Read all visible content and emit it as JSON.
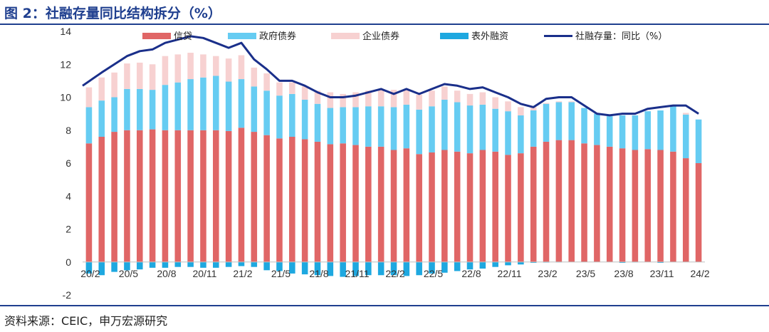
{
  "header": {
    "title": "图 2：社融存量同比结构拆分（%）"
  },
  "footer": {
    "source": "资料来源：CEIC，申万宏源研究"
  },
  "chart_data": {
    "type": "bar",
    "title": "图 2：社融存量同比结构拆分（%）",
    "xlabel": "",
    "ylabel": "",
    "ylim": [
      -2,
      14
    ],
    "yticks": [
      -2,
      0,
      2,
      4,
      6,
      8,
      10,
      12,
      14
    ],
    "stacked": true,
    "grid": false,
    "legend_position": "top",
    "categories": [
      "20/2",
      "20/3",
      "20/4",
      "20/5",
      "20/6",
      "20/7",
      "20/8",
      "20/9",
      "20/10",
      "20/11",
      "20/12",
      "21/1",
      "21/2",
      "21/3",
      "21/4",
      "21/5",
      "21/6",
      "21/7",
      "21/8",
      "21/9",
      "21/10",
      "21/11",
      "21/12",
      "22/1",
      "22/2",
      "22/3",
      "22/4",
      "22/5",
      "22/6",
      "22/7",
      "22/8",
      "22/9",
      "22/10",
      "22/11",
      "22/12",
      "23/1",
      "23/2",
      "23/3",
      "23/4",
      "23/5",
      "23/6",
      "23/7",
      "23/8",
      "23/9",
      "23/10",
      "23/11",
      "23/12",
      "24/1",
      "24/2"
    ],
    "tick_labels": [
      "20/2",
      "20/5",
      "20/8",
      "20/11",
      "21/2",
      "21/5",
      "21/8",
      "21/11",
      "22/2",
      "22/5",
      "22/8",
      "22/11",
      "23/2",
      "23/5",
      "23/8",
      "23/11",
      "24/2"
    ],
    "series": [
      {
        "name": "信贷",
        "kind": "bar",
        "color": "#e06666",
        "values": [
          7.2,
          7.6,
          7.9,
          8.0,
          8.0,
          8.05,
          8.0,
          8.0,
          8.0,
          8.0,
          8.0,
          7.95,
          8.15,
          7.9,
          7.7,
          7.5,
          7.6,
          7.45,
          7.3,
          7.15,
          7.2,
          7.1,
          7.0,
          7.0,
          6.8,
          6.9,
          6.55,
          6.65,
          6.8,
          6.7,
          6.6,
          6.8,
          6.7,
          6.5,
          6.6,
          7.0,
          7.3,
          7.4,
          7.4,
          7.2,
          7.1,
          7.0,
          6.9,
          6.8,
          6.85,
          6.8,
          6.7,
          6.3,
          6.0
        ]
      },
      {
        "name": "政府债券",
        "kind": "bar",
        "color": "#66ccf2",
        "values": [
          2.2,
          2.2,
          2.1,
          2.5,
          2.5,
          2.4,
          2.75,
          2.9,
          3.1,
          3.2,
          3.3,
          3.0,
          2.95,
          2.75,
          2.7,
          2.6,
          2.6,
          2.4,
          2.3,
          2.2,
          2.2,
          2.3,
          2.45,
          2.45,
          2.6,
          2.65,
          2.7,
          2.8,
          3.05,
          3.0,
          2.9,
          2.75,
          2.6,
          2.65,
          2.3,
          2.2,
          2.3,
          2.3,
          2.3,
          2.15,
          1.9,
          1.85,
          2.0,
          2.1,
          2.3,
          2.4,
          2.75,
          2.65,
          2.65
        ]
      },
      {
        "name": "企业债券",
        "kind": "bar",
        "color": "#f7d1d1",
        "values": [
          1.2,
          1.4,
          1.5,
          1.55,
          1.6,
          1.55,
          1.75,
          1.7,
          1.6,
          1.4,
          1.2,
          1.4,
          1.45,
          1.15,
          1.05,
          0.8,
          0.7,
          0.8,
          0.8,
          0.95,
          0.8,
          0.9,
          0.95,
          1.0,
          1.05,
          0.95,
          0.9,
          0.95,
          0.8,
          0.7,
          0.7,
          0.75,
          0.7,
          0.6,
          0.5,
          0.2,
          0.05,
          0.05,
          0.05,
          0.0,
          0.0,
          0.0,
          0.0,
          0.0,
          0.0,
          0.0,
          0.0,
          0.1,
          0.0
        ]
      },
      {
        "name": "表外融资",
        "kind": "bar",
        "color": "#1ea8e0",
        "values": [
          -0.7,
          -0.8,
          -0.6,
          -0.5,
          -0.45,
          -0.35,
          -0.35,
          -0.3,
          -0.3,
          -0.35,
          -0.35,
          -0.3,
          -0.25,
          -0.3,
          -0.5,
          -0.55,
          -0.7,
          -0.75,
          -0.8,
          -0.85,
          -0.9,
          -0.85,
          -0.8,
          -0.8,
          -0.8,
          -0.85,
          -0.8,
          -0.7,
          -0.65,
          -0.55,
          -0.45,
          -0.4,
          -0.3,
          -0.2,
          -0.15,
          -0.05,
          -0.03,
          -0.02,
          0.0,
          0.0,
          0.0,
          0.0,
          -0.05,
          -0.02,
          0.0,
          -0.05,
          0.0,
          0.0,
          0.0
        ]
      },
      {
        "name": "社融存量：同比（%）",
        "kind": "line",
        "color": "#1a2f8a",
        "values": [
          10.7,
          11.5,
          12.0,
          12.5,
          12.8,
          12.9,
          13.3,
          13.5,
          13.7,
          13.6,
          13.3,
          13.0,
          13.3,
          12.3,
          11.7,
          11.0,
          11.0,
          10.7,
          10.3,
          10.0,
          10.0,
          10.1,
          10.3,
          10.5,
          10.2,
          10.5,
          10.2,
          10.5,
          10.8,
          10.7,
          10.5,
          10.6,
          10.3,
          10.0,
          9.6,
          9.4,
          9.9,
          10.0,
          10.0,
          9.5,
          9.0,
          8.9,
          9.0,
          9.0,
          9.3,
          9.4,
          9.5,
          9.5,
          9.0
        ]
      }
    ]
  }
}
